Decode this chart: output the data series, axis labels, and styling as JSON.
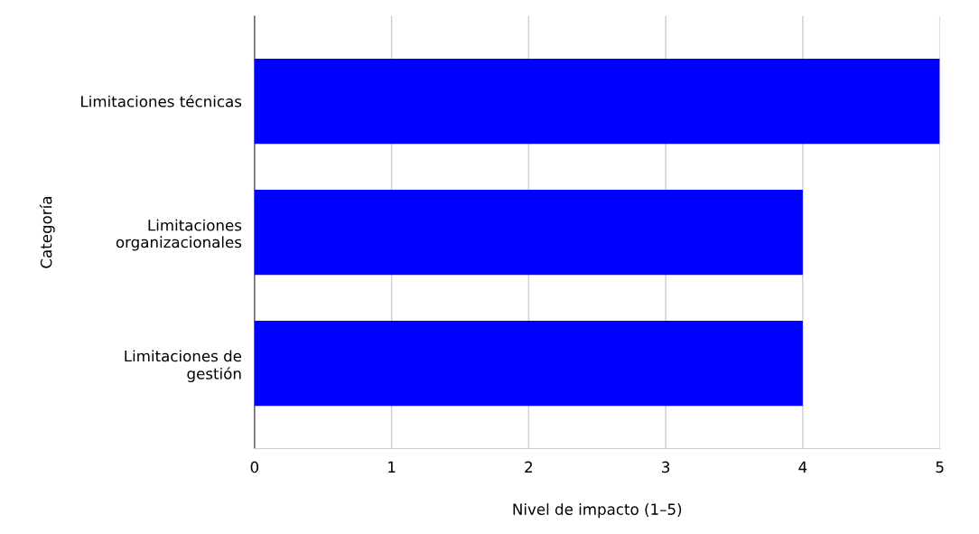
{
  "chart_data": {
    "type": "bar",
    "orientation": "horizontal",
    "xlabel": "Nivel de impacto (1–5)",
    "ylabel": "Categoría",
    "categories": [
      "Limitaciones técnicas",
      "Limitaciones\norganizacionales",
      "Limitaciones de\ngestión"
    ],
    "values": [
      5,
      4,
      4
    ],
    "color": "#0000ff",
    "xlim": [
      0,
      5
    ],
    "xticks": [
      0,
      1,
      2,
      3,
      4,
      5
    ],
    "grid": "x"
  }
}
